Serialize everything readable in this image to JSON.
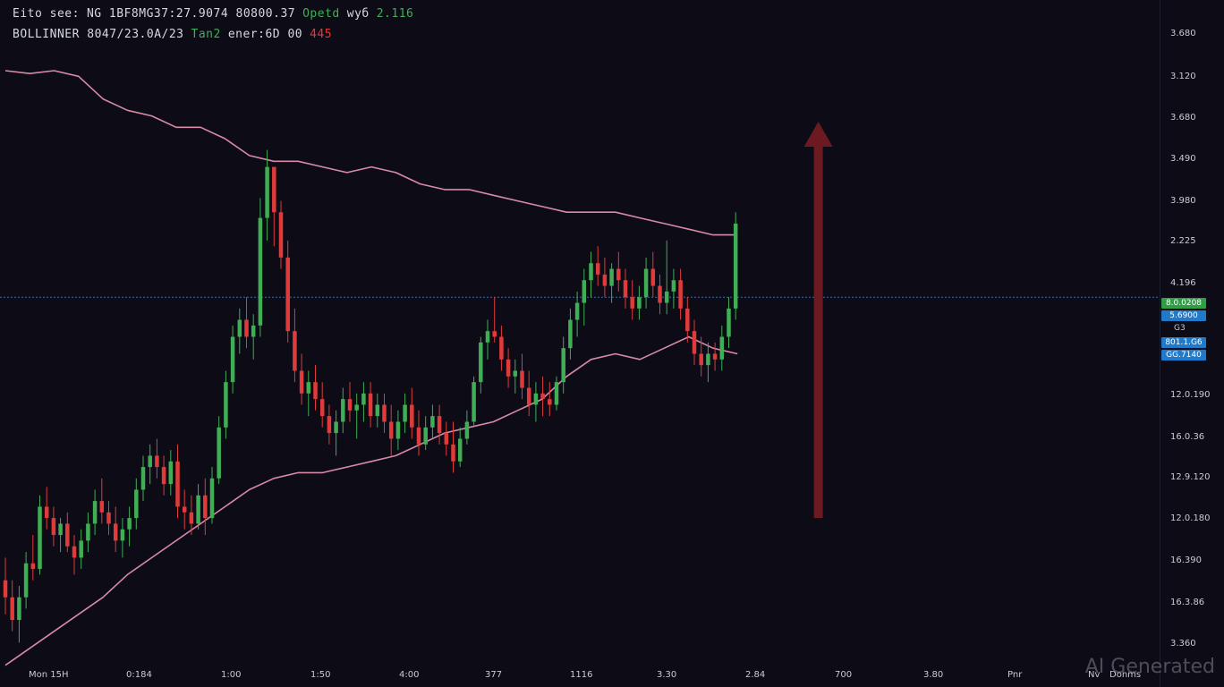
{
  "header": {
    "line1": [
      {
        "text": "Eito see:",
        "color": "#d6d9e0"
      },
      {
        "text": "NG 1BF8MG37:27.9074 80800.37",
        "color": "#d6d9e0"
      },
      {
        "text": "Opetd",
        "color": "#3fae55"
      },
      {
        "text": "wyб",
        "color": "#d6d9e0"
      },
      {
        "text": "2.116",
        "color": "#3fae55"
      }
    ],
    "line2": [
      {
        "text": "BOLLINNER 8047/23.0A/23",
        "color": "#d6d9e0"
      },
      {
        "text": "Tan2",
        "color": "#3fae55"
      },
      {
        "text": "ener:6D 00",
        "color": "#d6d9e0"
      },
      {
        "text": "445",
        "color": "#e03b3b"
      }
    ]
  },
  "price_axis_labels": [
    "3.680",
    "3.120",
    "3.680",
    "3.490",
    "3.980",
    "2.225",
    "4.196",
    "12.0.190",
    "16.0.36",
    "12.9.120",
    "12.0.180",
    "16.390",
    "16.3.86",
    "3.360"
  ],
  "price_tags": {
    "green": "8.0.0208",
    "blue1": "5.6900",
    "mark": "G3",
    "blue2": "801.1.G6",
    "blue3": "GG.7140"
  },
  "time_axis_labels": [
    "Mon 15H",
    "0:184",
    "1:00",
    "1:50",
    "4:00",
    "377",
    "1116",
    "3.30",
    "2.84",
    "700",
    "3.80",
    "Pnr",
    "Nv",
    "Donms"
  ],
  "watermark": "AI Generated",
  "chart_data": {
    "type": "candlestick",
    "indicator": "Bollinger Bands",
    "candles": [
      {
        "o": 0.0,
        "h": 0.08,
        "l": -0.12,
        "c": -0.06
      },
      {
        "o": -0.06,
        "h": 0.0,
        "l": -0.18,
        "c": -0.14
      },
      {
        "o": -0.14,
        "h": -0.02,
        "l": -0.22,
        "c": -0.06
      },
      {
        "o": -0.06,
        "h": 0.1,
        "l": -0.1,
        "c": 0.06
      },
      {
        "o": 0.06,
        "h": 0.16,
        "l": 0.0,
        "c": 0.04
      },
      {
        "o": 0.04,
        "h": 0.3,
        "l": 0.02,
        "c": 0.26
      },
      {
        "o": 0.26,
        "h": 0.33,
        "l": 0.18,
        "c": 0.22
      },
      {
        "o": 0.22,
        "h": 0.26,
        "l": 0.12,
        "c": 0.16
      },
      {
        "o": 0.16,
        "h": 0.22,
        "l": 0.1,
        "c": 0.2
      },
      {
        "o": 0.2,
        "h": 0.24,
        "l": 0.1,
        "c": 0.12
      },
      {
        "o": 0.12,
        "h": 0.16,
        "l": 0.02,
        "c": 0.08
      },
      {
        "o": 0.08,
        "h": 0.18,
        "l": 0.04,
        "c": 0.14
      },
      {
        "o": 0.14,
        "h": 0.24,
        "l": 0.1,
        "c": 0.2
      },
      {
        "o": 0.2,
        "h": 0.32,
        "l": 0.16,
        "c": 0.28
      },
      {
        "o": 0.28,
        "h": 0.36,
        "l": 0.2,
        "c": 0.24
      },
      {
        "o": 0.24,
        "h": 0.28,
        "l": 0.16,
        "c": 0.2
      },
      {
        "o": 0.2,
        "h": 0.26,
        "l": 0.1,
        "c": 0.14
      },
      {
        "o": 0.14,
        "h": 0.22,
        "l": 0.08,
        "c": 0.18
      },
      {
        "o": 0.18,
        "h": 0.26,
        "l": 0.12,
        "c": 0.22
      },
      {
        "o": 0.22,
        "h": 0.36,
        "l": 0.18,
        "c": 0.32
      },
      {
        "o": 0.32,
        "h": 0.44,
        "l": 0.28,
        "c": 0.4
      },
      {
        "o": 0.4,
        "h": 0.48,
        "l": 0.34,
        "c": 0.44
      },
      {
        "o": 0.44,
        "h": 0.5,
        "l": 0.36,
        "c": 0.4
      },
      {
        "o": 0.4,
        "h": 0.44,
        "l": 0.3,
        "c": 0.34
      },
      {
        "o": 0.34,
        "h": 0.46,
        "l": 0.3,
        "c": 0.42
      },
      {
        "o": 0.42,
        "h": 0.48,
        "l": 0.22,
        "c": 0.26
      },
      {
        "o": 0.26,
        "h": 0.32,
        "l": 0.18,
        "c": 0.24
      },
      {
        "o": 0.24,
        "h": 0.3,
        "l": 0.16,
        "c": 0.2
      },
      {
        "o": 0.2,
        "h": 0.34,
        "l": 0.18,
        "c": 0.3
      },
      {
        "o": 0.3,
        "h": 0.36,
        "l": 0.16,
        "c": 0.22
      },
      {
        "o": 0.22,
        "h": 0.4,
        "l": 0.2,
        "c": 0.36
      },
      {
        "o": 0.36,
        "h": 0.58,
        "l": 0.34,
        "c": 0.54
      },
      {
        "o": 0.54,
        "h": 0.74,
        "l": 0.5,
        "c": 0.7
      },
      {
        "o": 0.7,
        "h": 0.9,
        "l": 0.66,
        "c": 0.86
      },
      {
        "o": 0.86,
        "h": 0.96,
        "l": 0.8,
        "c": 0.92
      },
      {
        "o": 0.92,
        "h": 1.0,
        "l": 0.82,
        "c": 0.86
      },
      {
        "o": 0.86,
        "h": 0.94,
        "l": 0.78,
        "c": 0.9
      },
      {
        "o": 0.9,
        "h": 1.35,
        "l": 0.86,
        "c": 1.28
      },
      {
        "o": 1.28,
        "h": 1.52,
        "l": 1.2,
        "c": 1.46
      },
      {
        "o": 1.46,
        "h": 1.46,
        "l": 1.18,
        "c": 1.3
      },
      {
        "o": 1.3,
        "h": 1.34,
        "l": 1.1,
        "c": 1.14
      },
      {
        "o": 1.14,
        "h": 1.2,
        "l": 0.84,
        "c": 0.88
      },
      {
        "o": 0.88,
        "h": 0.96,
        "l": 0.7,
        "c": 0.74
      },
      {
        "o": 0.74,
        "h": 0.8,
        "l": 0.62,
        "c": 0.66
      },
      {
        "o": 0.66,
        "h": 0.74,
        "l": 0.58,
        "c": 0.7
      },
      {
        "o": 0.7,
        "h": 0.76,
        "l": 0.6,
        "c": 0.64
      },
      {
        "o": 0.64,
        "h": 0.7,
        "l": 0.54,
        "c": 0.58
      },
      {
        "o": 0.58,
        "h": 0.62,
        "l": 0.48,
        "c": 0.52
      },
      {
        "o": 0.52,
        "h": 0.6,
        "l": 0.44,
        "c": 0.56
      },
      {
        "o": 0.56,
        "h": 0.68,
        "l": 0.52,
        "c": 0.64
      },
      {
        "o": 0.64,
        "h": 0.7,
        "l": 0.56,
        "c": 0.6
      },
      {
        "o": 0.6,
        "h": 0.66,
        "l": 0.5,
        "c": 0.62
      },
      {
        "o": 0.62,
        "h": 0.7,
        "l": 0.56,
        "c": 0.66
      },
      {
        "o": 0.66,
        "h": 0.7,
        "l": 0.54,
        "c": 0.58
      },
      {
        "o": 0.58,
        "h": 0.66,
        "l": 0.54,
        "c": 0.62
      },
      {
        "o": 0.62,
        "h": 0.66,
        "l": 0.52,
        "c": 0.56
      },
      {
        "o": 0.56,
        "h": 0.62,
        "l": 0.44,
        "c": 0.5
      },
      {
        "o": 0.5,
        "h": 0.6,
        "l": 0.46,
        "c": 0.56
      },
      {
        "o": 0.56,
        "h": 0.66,
        "l": 0.52,
        "c": 0.62
      },
      {
        "o": 0.62,
        "h": 0.68,
        "l": 0.5,
        "c": 0.54
      },
      {
        "o": 0.54,
        "h": 0.6,
        "l": 0.44,
        "c": 0.48
      },
      {
        "o": 0.48,
        "h": 0.58,
        "l": 0.46,
        "c": 0.54
      },
      {
        "o": 0.54,
        "h": 0.62,
        "l": 0.5,
        "c": 0.58
      },
      {
        "o": 0.58,
        "h": 0.62,
        "l": 0.48,
        "c": 0.52
      },
      {
        "o": 0.52,
        "h": 0.56,
        "l": 0.44,
        "c": 0.48
      },
      {
        "o": 0.48,
        "h": 0.56,
        "l": 0.38,
        "c": 0.42
      },
      {
        "o": 0.42,
        "h": 0.54,
        "l": 0.4,
        "c": 0.5
      },
      {
        "o": 0.5,
        "h": 0.6,
        "l": 0.48,
        "c": 0.56
      },
      {
        "o": 0.56,
        "h": 0.72,
        "l": 0.54,
        "c": 0.7
      },
      {
        "o": 0.7,
        "h": 0.86,
        "l": 0.66,
        "c": 0.84
      },
      {
        "o": 0.84,
        "h": 0.92,
        "l": 0.78,
        "c": 0.88
      },
      {
        "o": 0.88,
        "h": 1.0,
        "l": 0.84,
        "c": 0.86
      },
      {
        "o": 0.86,
        "h": 0.9,
        "l": 0.74,
        "c": 0.78
      },
      {
        "o": 0.78,
        "h": 0.82,
        "l": 0.68,
        "c": 0.72
      },
      {
        "o": 0.72,
        "h": 0.78,
        "l": 0.66,
        "c": 0.74
      },
      {
        "o": 0.74,
        "h": 0.8,
        "l": 0.64,
        "c": 0.68
      },
      {
        "o": 0.68,
        "h": 0.74,
        "l": 0.58,
        "c": 0.62
      },
      {
        "o": 0.62,
        "h": 0.7,
        "l": 0.56,
        "c": 0.66
      },
      {
        "o": 0.66,
        "h": 0.72,
        "l": 0.58,
        "c": 0.64
      },
      {
        "o": 0.64,
        "h": 0.7,
        "l": 0.58,
        "c": 0.62
      },
      {
        "o": 0.62,
        "h": 0.72,
        "l": 0.6,
        "c": 0.7
      },
      {
        "o": 0.7,
        "h": 0.86,
        "l": 0.66,
        "c": 0.82
      },
      {
        "o": 0.82,
        "h": 0.96,
        "l": 0.78,
        "c": 0.92
      },
      {
        "o": 0.92,
        "h": 1.02,
        "l": 0.86,
        "c": 0.98
      },
      {
        "o": 0.98,
        "h": 1.1,
        "l": 0.9,
        "c": 1.06
      },
      {
        "o": 1.06,
        "h": 1.16,
        "l": 1.0,
        "c": 1.12
      },
      {
        "o": 1.12,
        "h": 1.18,
        "l": 1.04,
        "c": 1.08
      },
      {
        "o": 1.08,
        "h": 1.14,
        "l": 1.0,
        "c": 1.04
      },
      {
        "o": 1.04,
        "h": 1.12,
        "l": 0.98,
        "c": 1.1
      },
      {
        "o": 1.1,
        "h": 1.16,
        "l": 1.02,
        "c": 1.06
      },
      {
        "o": 1.06,
        "h": 1.1,
        "l": 0.96,
        "c": 1.0
      },
      {
        "o": 1.0,
        "h": 1.06,
        "l": 0.92,
        "c": 0.96
      },
      {
        "o": 0.96,
        "h": 1.04,
        "l": 0.92,
        "c": 1.0
      },
      {
        "o": 1.0,
        "h": 1.14,
        "l": 0.96,
        "c": 1.1
      },
      {
        "o": 1.1,
        "h": 1.16,
        "l": 1.0,
        "c": 1.04
      },
      {
        "o": 1.04,
        "h": 1.08,
        "l": 0.94,
        "c": 0.98
      },
      {
        "o": 0.98,
        "h": 1.2,
        "l": 0.94,
        "c": 1.02
      },
      {
        "o": 1.02,
        "h": 1.1,
        "l": 0.96,
        "c": 1.06
      },
      {
        "o": 1.06,
        "h": 1.1,
        "l": 0.92,
        "c": 0.96
      },
      {
        "o": 0.96,
        "h": 1.0,
        "l": 0.84,
        "c": 0.88
      },
      {
        "o": 0.88,
        "h": 0.92,
        "l": 0.76,
        "c": 0.8
      },
      {
        "o": 0.8,
        "h": 0.86,
        "l": 0.72,
        "c": 0.76
      },
      {
        "o": 0.76,
        "h": 0.84,
        "l": 0.7,
        "c": 0.8
      },
      {
        "o": 0.8,
        "h": 0.84,
        "l": 0.74,
        "c": 0.78
      },
      {
        "o": 0.78,
        "h": 0.9,
        "l": 0.74,
        "c": 0.86
      },
      {
        "o": 0.86,
        "h": 1.0,
        "l": 0.82,
        "c": 0.96
      },
      {
        "o": 0.96,
        "h": 1.3,
        "l": 0.92,
        "c": 1.26
      }
    ],
    "upper_band": [
      1.8,
      1.79,
      1.8,
      1.78,
      1.7,
      1.66,
      1.64,
      1.6,
      1.6,
      1.56,
      1.5,
      1.48,
      1.48,
      1.46,
      1.44,
      1.46,
      1.44,
      1.4,
      1.38,
      1.38,
      1.36,
      1.34,
      1.32,
      1.3,
      1.3,
      1.3,
      1.28,
      1.26,
      1.24,
      1.22,
      1.22
    ],
    "lower_band": [
      -0.3,
      -0.24,
      -0.18,
      -0.12,
      -0.06,
      0.02,
      0.08,
      0.14,
      0.2,
      0.26,
      0.32,
      0.36,
      0.38,
      0.38,
      0.4,
      0.42,
      0.44,
      0.48,
      0.52,
      0.54,
      0.56,
      0.6,
      0.64,
      0.72,
      0.78,
      0.8,
      0.78,
      0.82,
      0.86,
      0.82,
      0.8
    ],
    "horizontal_line": 1.0,
    "y_range": [
      -0.32,
      1.86
    ],
    "colors": {
      "up": "#3fae55",
      "down": "#e03b3b",
      "band": "#d98aa6",
      "hline": "#3b6fb0",
      "arrow": "#6b1a22"
    },
    "arrow": {
      "from_value": 0.22,
      "to_value": 1.62,
      "bar_index": 118
    }
  }
}
